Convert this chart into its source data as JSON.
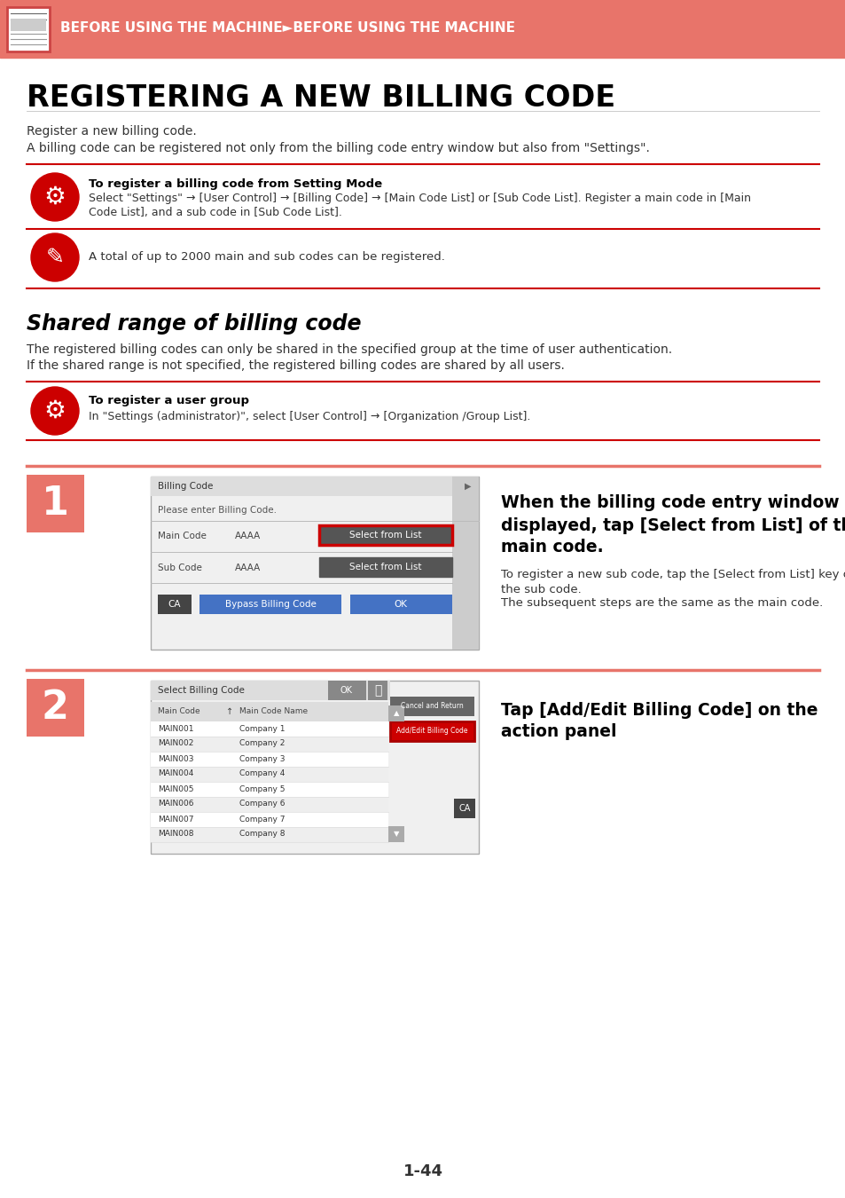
{
  "header_bg": "#E8746A",
  "header_text": "BEFORE USING THE MACHINE►BEFORE USING THE MACHINE",
  "header_text_color": "#FFFFFF",
  "page_bg": "#FFFFFF",
  "main_title": "REGISTERING A NEW BILLING CODE",
  "main_title_color": "#000000",
  "body_text_color": "#333333",
  "red_line_color": "#CC0000",
  "salmon_line_color": "#E8746A",
  "intro_line1": "Register a new billing code.",
  "intro_line2": "A billing code can be registered not only from the billing code entry window but also from \"Settings\".",
  "tip1_title": "To register a billing code from Setting Mode",
  "tip1_line1": "Select \"Settings\" → [User Control] → [Billing Code] → [Main Code List] or [Sub Code List]. Register a main code in [Main",
  "tip1_line2": "Code List], and a sub code in [Sub Code List].",
  "tip2_body": "A total of up to 2000 main and sub codes can be registered.",
  "section2_title": "Shared range of billing code",
  "section2_line1": "The registered billing codes can only be shared in the specified group at the time of user authentication.",
  "section2_line2": "If the shared range is not specified, the registered billing codes are shared by all users.",
  "tip3_title": "To register a user group",
  "tip3_body": "In \"Settings (administrator)\", select [User Control] → [Organization /Group List].",
  "step1_number": "1",
  "step1_title_line1": "When the billing code entry window is",
  "step1_title_line2": "displayed, tap [Select from List] of the",
  "step1_title_line3": "main code.",
  "step1_body1": "To register a new sub code, tap the [Select from List] key of",
  "step1_body2": "the sub code.",
  "step1_body3": "The subsequent steps are the same as the main code.",
  "step2_number": "2",
  "step2_title_line1": "Tap [Add/Edit Billing Code] on the",
  "step2_title_line2": "action panel",
  "page_number": "1-44",
  "icon_gear_color": "#CC0000",
  "icon_pin_color": "#CC0000",
  "step_number_bg": "#E8746A",
  "step_number_color": "#FFFFFF",
  "add_edit_btn_color": "#CC0000",
  "screen_bg": "#DCDCDC",
  "screen_border": "#999999",
  "btn_blue": "#4472C4",
  "btn_dark": "#333333"
}
